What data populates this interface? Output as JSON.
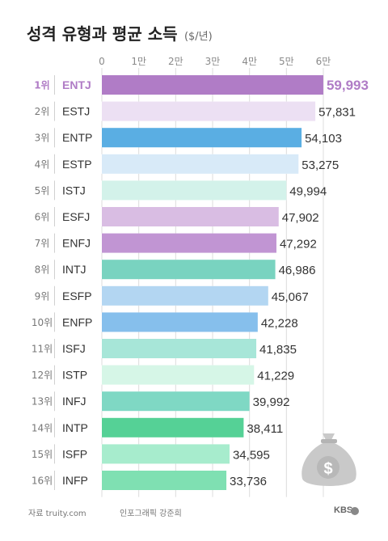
{
  "header": {
    "title": "성격 유형과 평균 소득",
    "unit": "($/년)"
  },
  "footer": {
    "source": "자료 truity.com",
    "credit": "인포그래픽 강준희",
    "brand": "KBS"
  },
  "icon": "money-bag-icon",
  "chart_data": {
    "type": "bar",
    "orientation": "horizontal",
    "title": "성격 유형과 평균 소득",
    "unit": "($/년)",
    "xlim": [
      0,
      60000
    ],
    "xticks": [
      0,
      10000,
      20000,
      30000,
      40000,
      50000,
      60000
    ],
    "xtick_labels": [
      "0",
      "1만",
      "2만",
      "3만",
      "4만",
      "5만",
      "6만"
    ],
    "grid": true,
    "ranks": [
      "1위",
      "2위",
      "3위",
      "4위",
      "5위",
      "6위",
      "7위",
      "8위",
      "9위",
      "10위",
      "11위",
      "12위",
      "13위",
      "14위",
      "15위",
      "16위"
    ],
    "categories": [
      "ENTJ",
      "ESTJ",
      "ENTP",
      "ESTP",
      "ISTJ",
      "ESFJ",
      "ENFJ",
      "INTJ",
      "ESFP",
      "ENFP",
      "ISFJ",
      "ISTP",
      "INFJ",
      "INTP",
      "ISFP",
      "INFP"
    ],
    "values": [
      59993,
      57831,
      54103,
      53275,
      49994,
      47902,
      47292,
      46986,
      45067,
      42228,
      41835,
      41229,
      39992,
      38411,
      34595,
      33736
    ],
    "value_labels": [
      "59,993",
      "57,831",
      "54,103",
      "53,275",
      "49,994",
      "47,902",
      "47,292",
      "46,986",
      "45,067",
      "42,228",
      "41,835",
      "41,229",
      "39,992",
      "38,411",
      "34,595",
      "33,736"
    ],
    "colors": [
      "#b07cc6",
      "#ece0f3",
      "#5aaee3",
      "#d8eaf8",
      "#d3f2ea",
      "#d9bde3",
      "#c195d3",
      "#79d3c0",
      "#b3d6f2",
      "#86bfec",
      "#a7e6d8",
      "#d6f6e7",
      "#7fd8c4",
      "#55d196",
      "#a7eccd",
      "#7fe0b2"
    ],
    "highlight_color": "#b07cc6"
  }
}
